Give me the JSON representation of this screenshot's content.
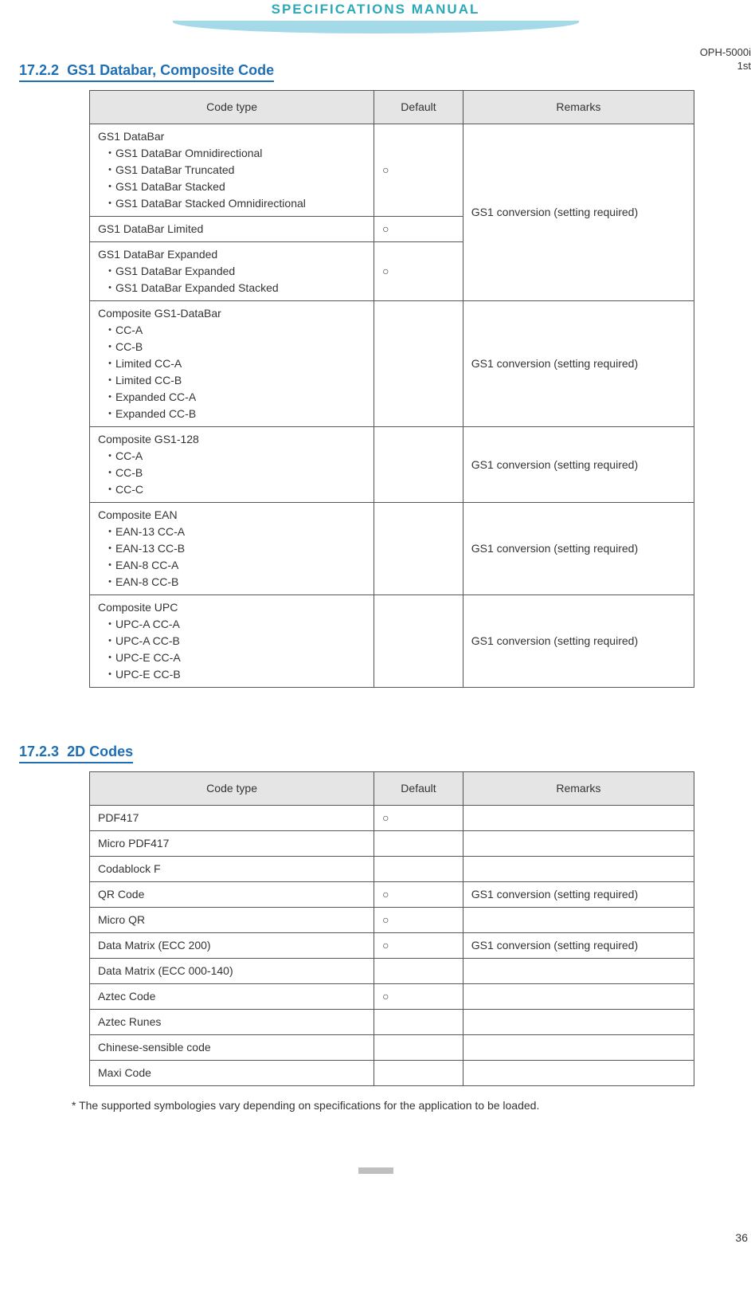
{
  "header": {
    "title": "SPECIFICATIONS MANUAL",
    "model": "OPH-5000i",
    "revision": "1st"
  },
  "section1": {
    "number": "17.2.2",
    "title": "GS1 Databar, Composite Code",
    "columns": {
      "c1": "Code type",
      "c2": "Default",
      "c3": "Remarks"
    },
    "rows": [
      {
        "code": "GS1 DataBar\n ・GS1 DataBar Omnidirectional\n ・GS1 DataBar Truncated\n ・GS1 DataBar Stacked\n ・GS1 DataBar Stacked Omnidirectional",
        "default": "○",
        "remarks": "GS1 conversion (setting required)",
        "remarks_rowspan": 3
      },
      {
        "code": "GS1 DataBar Limited",
        "default": "○"
      },
      {
        "code": "GS1 DataBar Expanded\n ・GS1 DataBar Expanded\n ・GS1 DataBar Expanded Stacked",
        "default": "○"
      },
      {
        "code": "Composite GS1-DataBar\n ・CC-A\n ・CC-B\n ・Limited CC-A\n ・Limited CC-B\n ・Expanded CC-A\n ・Expanded CC-B",
        "default": "",
        "remarks": "GS1 conversion (setting required)",
        "remarks_rowspan": 1
      },
      {
        "code": "Composite GS1-128\n ・CC-A\n ・CC-B\n ・CC-C",
        "default": "",
        "remarks": "GS1 conversion (setting required)",
        "remarks_rowspan": 1
      },
      {
        "code": "Composite EAN\n ・EAN-13 CC-A\n ・EAN-13 CC-B\n ・EAN-8 CC-A\n ・EAN-8 CC-B",
        "default": "",
        "remarks": "GS1 conversion (setting required)",
        "remarks_rowspan": 1
      },
      {
        "code": "Composite UPC\n ・UPC-A CC-A\n ・UPC-A CC-B\n ・UPC-E CC-A\n ・UPC-E CC-B",
        "default": "",
        "remarks": "GS1 conversion (setting required)",
        "remarks_rowspan": 1
      }
    ]
  },
  "section2": {
    "number": "17.2.3",
    "title": "2D Codes",
    "columns": {
      "c1": "Code type",
      "c2": "Default",
      "c3": "Remarks"
    },
    "rows": [
      {
        "code": "PDF417",
        "default": "○",
        "remarks": ""
      },
      {
        "code": "Micro PDF417",
        "default": "",
        "remarks": ""
      },
      {
        "code": "Codablock F",
        "default": "",
        "remarks": ""
      },
      {
        "code": "QR Code",
        "default": "○",
        "remarks": "GS1 conversion (setting required)"
      },
      {
        "code": "Micro QR",
        "default": "○",
        "remarks": ""
      },
      {
        "code": "Data Matrix (ECC 200)",
        "default": "○",
        "remarks": "GS1 conversion (setting required)"
      },
      {
        "code": "Data Matrix (ECC 000-140)",
        "default": "",
        "remarks": ""
      },
      {
        "code": "Aztec Code",
        "default": "○",
        "remarks": ""
      },
      {
        "code": "Aztec Runes",
        "default": "",
        "remarks": ""
      },
      {
        "code": "Chinese-sensible code",
        "default": "",
        "remarks": ""
      },
      {
        "code": "Maxi Code",
        "default": "",
        "remarks": ""
      }
    ]
  },
  "footnote": "* The supported symbologies vary depending on specifications for the application to be loaded.",
  "page_number": "36",
  "colors": {
    "heading": "#1f6fb5",
    "spec_title": "#2ca9b8",
    "swoosh": "#a4d9e8",
    "header_bg": "#e5e5e5",
    "border": "#555"
  }
}
